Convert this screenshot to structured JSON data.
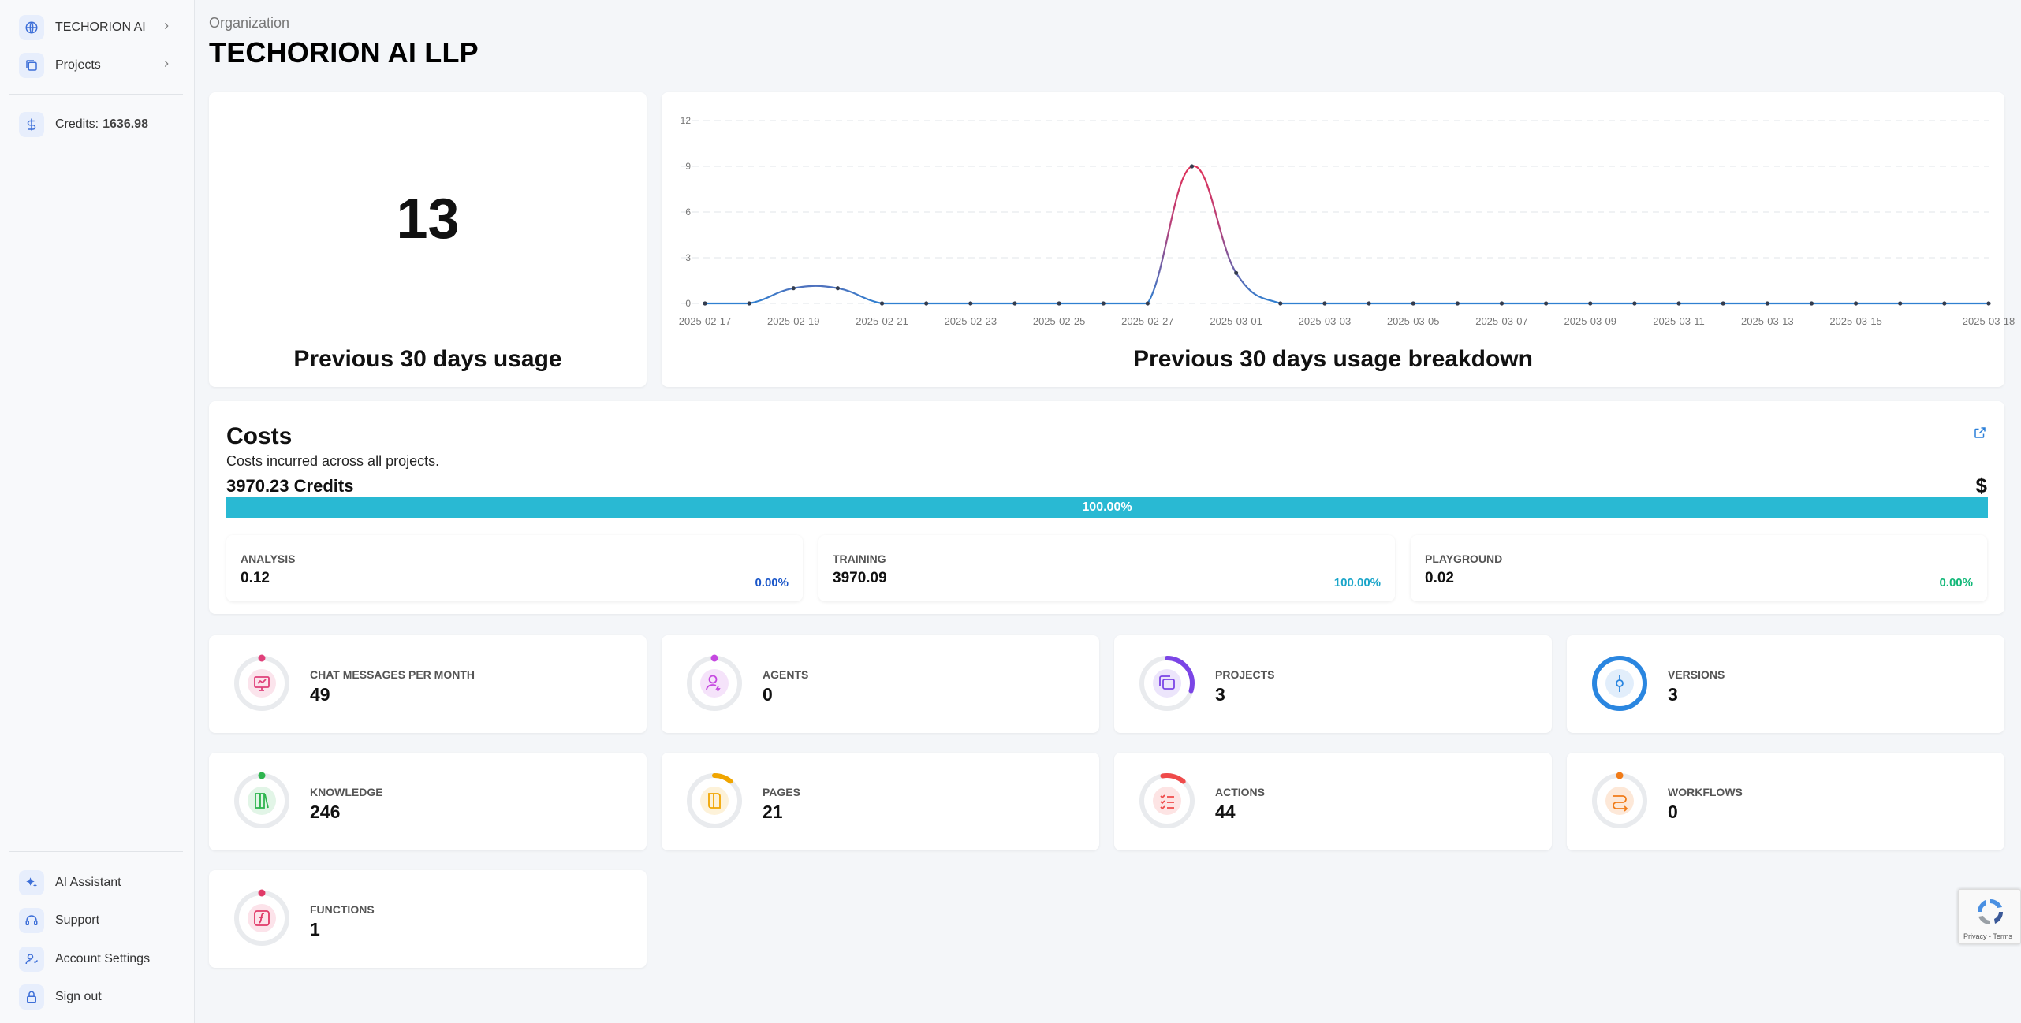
{
  "sidebar": {
    "top": [
      {
        "label": "TECHORION AI",
        "icon": "globe-icon"
      },
      {
        "label": "Projects",
        "icon": "projects-icon"
      }
    ],
    "credits": {
      "label": "Credits:",
      "value": "1636.98"
    },
    "bottom": [
      {
        "label": "AI Assistant",
        "icon": "sparkle-icon"
      },
      {
        "label": "Support",
        "icon": "headset-icon"
      },
      {
        "label": "Account Settings",
        "icon": "user-settings-icon"
      },
      {
        "label": "Sign out",
        "icon": "lock-icon"
      }
    ]
  },
  "header": {
    "label": "Organization",
    "title": "TECHORION AI LLP"
  },
  "usage": {
    "total": "13",
    "caption": "Previous 30 days usage"
  },
  "breakdown": {
    "caption": "Previous 30 days usage breakdown"
  },
  "chart_data": {
    "type": "line",
    "x": [
      "2025-02-17",
      "2025-02-18",
      "2025-02-19",
      "2025-02-20",
      "2025-02-21",
      "2025-02-22",
      "2025-02-23",
      "2025-02-24",
      "2025-02-25",
      "2025-02-26",
      "2025-02-27",
      "2025-02-28",
      "2025-03-01",
      "2025-03-02",
      "2025-03-03",
      "2025-03-04",
      "2025-03-05",
      "2025-03-06",
      "2025-03-07",
      "2025-03-08",
      "2025-03-09",
      "2025-03-10",
      "2025-03-11",
      "2025-03-12",
      "2025-03-13",
      "2025-03-14",
      "2025-03-15",
      "2025-03-16",
      "2025-03-17",
      "2025-03-18"
    ],
    "values": [
      0,
      0,
      1,
      1,
      0,
      0,
      0,
      0,
      0,
      0,
      0,
      9,
      2,
      0,
      0,
      0,
      0,
      0,
      0,
      0,
      0,
      0,
      0,
      0,
      0,
      0,
      0,
      0,
      0,
      0
    ],
    "xtick_labels": [
      "2025-02-17",
      "2025-02-19",
      "2025-02-21",
      "2025-02-23",
      "2025-02-25",
      "2025-02-27",
      "2025-03-01",
      "2025-03-03",
      "2025-03-05",
      "2025-03-07",
      "2025-03-09",
      "2025-03-11",
      "2025-03-13",
      "2025-03-15",
      "2025-03-18"
    ],
    "yticks": [
      "0",
      "3",
      "6",
      "9",
      "12"
    ],
    "ylim": [
      0,
      12
    ],
    "grid": true,
    "colors": {
      "line": "#2f80d1",
      "peak": "#e0325a"
    }
  },
  "costs": {
    "title": "Costs",
    "subtitle": "Costs incurred across all projects.",
    "total": "3970.23 Credits",
    "dollar": "$",
    "progress_label": "100.00%",
    "progress": 1.0,
    "items": [
      {
        "label": "ANALYSIS",
        "value": "0.12",
        "pct": "0.00%",
        "color": "#1a56c9"
      },
      {
        "label": "TRAINING",
        "value": "3970.09",
        "pct": "100.00%",
        "color": "#1aa5c9"
      },
      {
        "label": "PLAYGROUND",
        "value": "0.02",
        "pct": "0.00%",
        "color": "#13b879"
      }
    ]
  },
  "stats": [
    {
      "label": "CHAT MESSAGES PER MONTH",
      "value": "49",
      "icon": "chat-monitor-icon",
      "color": "#e0407a",
      "fill": 0.0
    },
    {
      "label": "AGENTS",
      "value": "0",
      "icon": "agent-icon",
      "color": "#c548e0",
      "fill": 0.0
    },
    {
      "label": "PROJECTS",
      "value": "3",
      "icon": "projects-icon",
      "color": "#7b45e6",
      "fill": 0.3
    },
    {
      "label": "VERSIONS",
      "value": "3",
      "icon": "version-icon",
      "color": "#2a86e0",
      "fill": 1.0
    },
    {
      "label": "KNOWLEDGE",
      "value": "246",
      "icon": "knowledge-icon",
      "color": "#2fb54f",
      "fill": 0.0
    },
    {
      "label": "PAGES",
      "value": "21",
      "icon": "book-icon",
      "color": "#f0a500",
      "fill": 0.1
    },
    {
      "label": "ACTIONS",
      "value": "44",
      "icon": "checklist-icon",
      "color": "#ef4a4a",
      "fill": 0.15
    },
    {
      "label": "WORKFLOWS",
      "value": "0",
      "icon": "workflow-icon",
      "color": "#f07b18",
      "fill": 0.0
    },
    {
      "label": "FUNCTIONS",
      "value": "1",
      "icon": "function-icon",
      "color": "#e03a68",
      "fill": 0.0
    }
  ],
  "recaptcha": {
    "text": "Privacy - Terms"
  }
}
